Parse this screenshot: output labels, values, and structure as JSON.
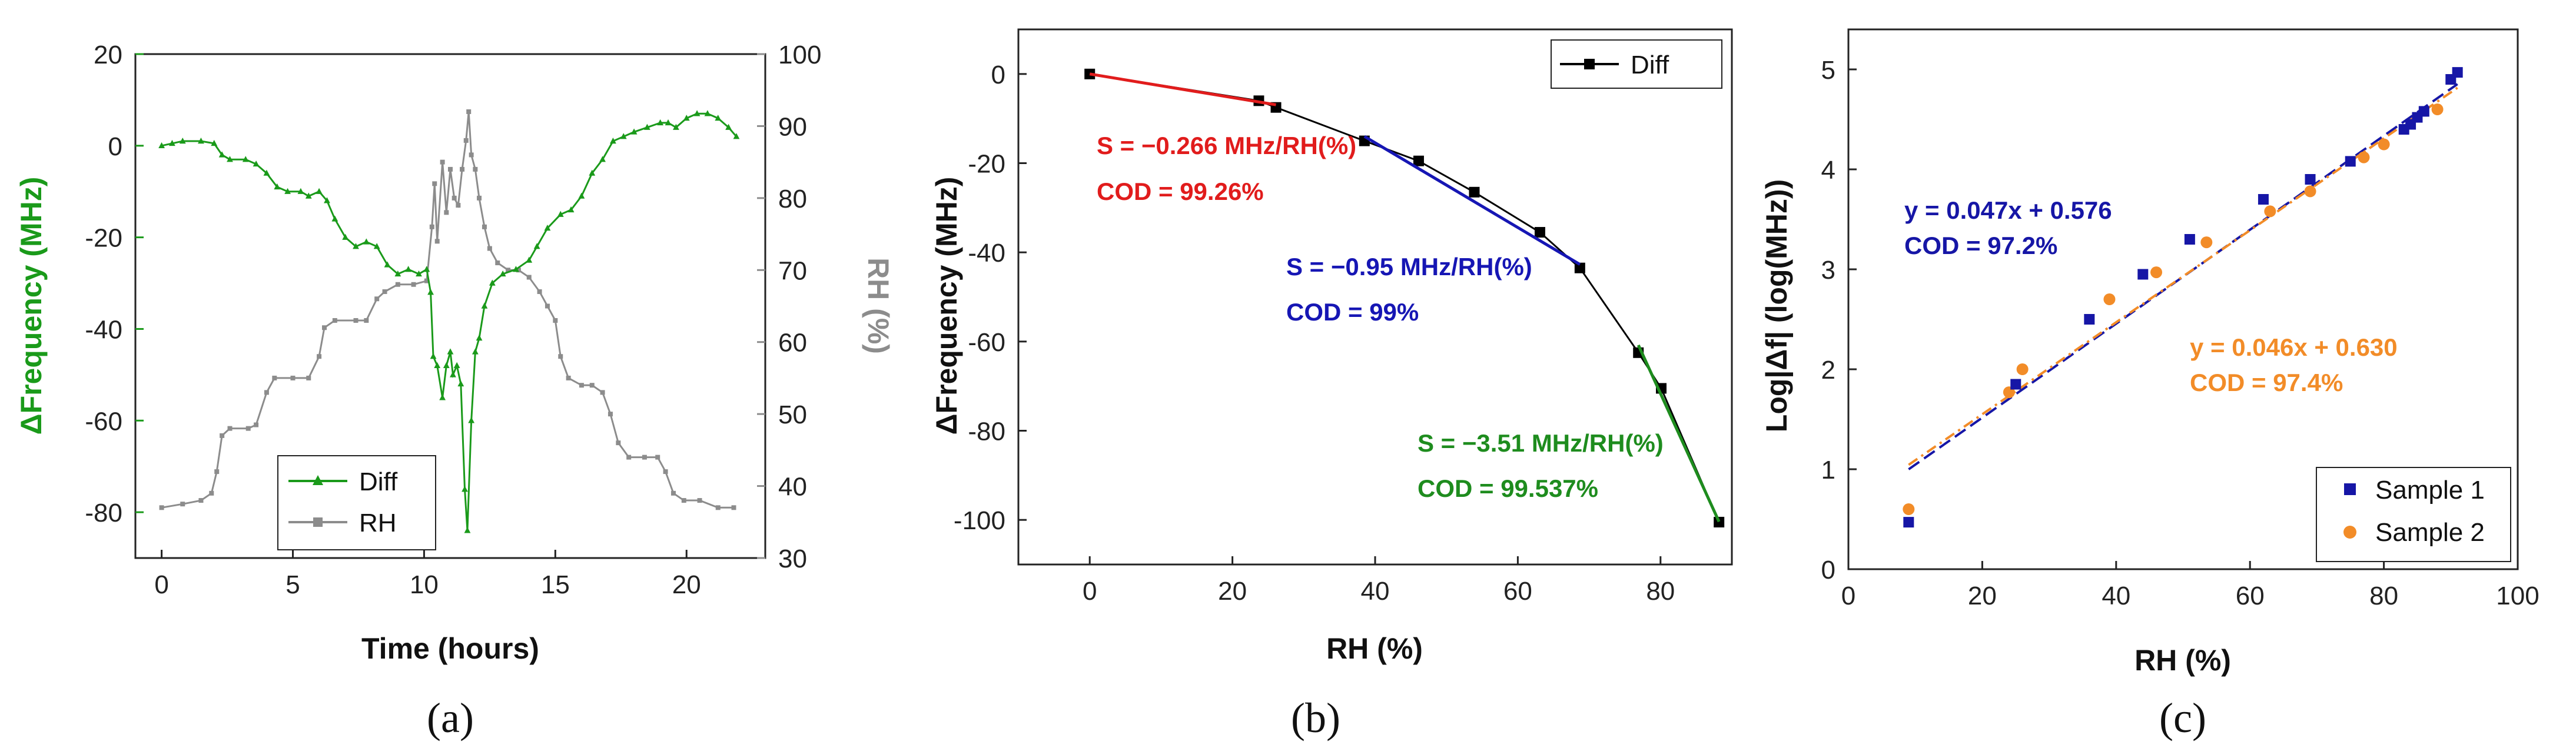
{
  "chart_data": [
    {
      "panel_label": "(a)",
      "type": "line",
      "xlabel": "Time (hours)",
      "ylabel": "ΔFrequency (MHz)",
      "y2label": "RH (%)",
      "xlim": [
        -1,
        23
      ],
      "ylim": [
        -90,
        20
      ],
      "y2lim": [
        30,
        100
      ],
      "xticks": [
        "0",
        "5",
        "10",
        "15",
        "20"
      ],
      "yticks": [
        "20",
        "0",
        "-20",
        "-40",
        "-60",
        "-80"
      ],
      "y2ticks": [
        "100",
        "90",
        "80",
        "70",
        "60",
        "50",
        "40",
        "30"
      ],
      "colors": {
        "diff": "#1a9a1a",
        "rh": "#8c8c8c",
        "left_axis": "#1a9a1a",
        "right_axis": "#8c8c8c"
      },
      "legend": {
        "position": "bottom-left",
        "entries": [
          "Diff",
          "RH"
        ]
      },
      "series": [
        {
          "name": "Diff",
          "axis": "left",
          "marker": "triangle",
          "points": [
            [
              0,
              0
            ],
            [
              0.4,
              0.5
            ],
            [
              0.8,
              1
            ],
            [
              1.5,
              1
            ],
            [
              2,
              0.5
            ],
            [
              2.3,
              -2
            ],
            [
              2.6,
              -3
            ],
            [
              3.2,
              -3
            ],
            [
              3.6,
              -4
            ],
            [
              4,
              -6
            ],
            [
              4.4,
              -9
            ],
            [
              4.8,
              -10
            ],
            [
              5.3,
              -10
            ],
            [
              5.6,
              -11
            ],
            [
              6,
              -10
            ],
            [
              6.3,
              -12
            ],
            [
              6.6,
              -16
            ],
            [
              7,
              -20
            ],
            [
              7.4,
              -22
            ],
            [
              7.8,
              -21
            ],
            [
              8.2,
              -22
            ],
            [
              8.6,
              -26
            ],
            [
              9,
              -28
            ],
            [
              9.4,
              -27
            ],
            [
              9.8,
              -28
            ],
            [
              10.1,
              -27
            ],
            [
              10.25,
              -32
            ],
            [
              10.35,
              -46
            ],
            [
              10.5,
              -48
            ],
            [
              10.7,
              -55
            ],
            [
              10.85,
              -48
            ],
            [
              11.0,
              -45
            ],
            [
              11.1,
              -50
            ],
            [
              11.25,
              -48
            ],
            [
              11.4,
              -52
            ],
            [
              11.55,
              -75
            ],
            [
              11.65,
              -84
            ],
            [
              11.8,
              -60
            ],
            [
              11.95,
              -45
            ],
            [
              12.1,
              -42
            ],
            [
              12.3,
              -35
            ],
            [
              12.6,
              -30
            ],
            [
              13,
              -28
            ],
            [
              13.5,
              -27
            ],
            [
              14,
              -25
            ],
            [
              14.3,
              -22
            ],
            [
              14.7,
              -18
            ],
            [
              15.2,
              -15
            ],
            [
              15.6,
              -14
            ],
            [
              16,
              -11
            ],
            [
              16.4,
              -6
            ],
            [
              16.8,
              -3
            ],
            [
              17.2,
              1
            ],
            [
              17.6,
              2
            ],
            [
              18,
              3
            ],
            [
              18.5,
              4
            ],
            [
              19,
              5
            ],
            [
              19.3,
              5
            ],
            [
              19.6,
              4
            ],
            [
              20,
              6
            ],
            [
              20.4,
              7
            ],
            [
              20.8,
              7
            ],
            [
              21.2,
              6
            ],
            [
              21.6,
              4
            ],
            [
              21.9,
              2
            ]
          ]
        },
        {
          "name": "RH",
          "axis": "right",
          "marker": "square",
          "points": [
            [
              0,
              37
            ],
            [
              0.8,
              37.5
            ],
            [
              1.5,
              38
            ],
            [
              1.9,
              39
            ],
            [
              2.1,
              42
            ],
            [
              2.3,
              47
            ],
            [
              2.6,
              48
            ],
            [
              3.3,
              48
            ],
            [
              3.6,
              48.5
            ],
            [
              4,
              53
            ],
            [
              4.3,
              55
            ],
            [
              5,
              55
            ],
            [
              5.6,
              55
            ],
            [
              6,
              58
            ],
            [
              6.2,
              62
            ],
            [
              6.6,
              63
            ],
            [
              7.4,
              63
            ],
            [
              7.8,
              63
            ],
            [
              8.2,
              66
            ],
            [
              8.5,
              67
            ],
            [
              9,
              68
            ],
            [
              9.6,
              68
            ],
            [
              10.1,
              68.5
            ],
            [
              10.3,
              76
            ],
            [
              10.4,
              82
            ],
            [
              10.5,
              74
            ],
            [
              10.7,
              85
            ],
            [
              10.85,
              78
            ],
            [
              11.0,
              84
            ],
            [
              11.15,
              80
            ],
            [
              11.3,
              79
            ],
            [
              11.45,
              84
            ],
            [
              11.6,
              88
            ],
            [
              11.7,
              92
            ],
            [
              11.8,
              86
            ],
            [
              11.95,
              84
            ],
            [
              12.1,
              80
            ],
            [
              12.3,
              76
            ],
            [
              12.5,
              73
            ],
            [
              12.8,
              71
            ],
            [
              13.2,
              70
            ],
            [
              13.6,
              70
            ],
            [
              14,
              69
            ],
            [
              14.4,
              67
            ],
            [
              14.7,
              65
            ],
            [
              15,
              63
            ],
            [
              15.2,
              58
            ],
            [
              15.5,
              55
            ],
            [
              16,
              54
            ],
            [
              16.4,
              54
            ],
            [
              16.8,
              53
            ],
            [
              17.1,
              50
            ],
            [
              17.4,
              46
            ],
            [
              17.8,
              44
            ],
            [
              18.4,
              44
            ],
            [
              18.9,
              44
            ],
            [
              19.2,
              42
            ],
            [
              19.5,
              39
            ],
            [
              19.9,
              38
            ],
            [
              20.5,
              38
            ],
            [
              21.2,
              37
            ],
            [
              21.8,
              37
            ]
          ]
        }
      ]
    },
    {
      "panel_label": "(b)",
      "type": "line",
      "xlabel": "RH (%)",
      "ylabel": "ΔFrequency (MHz)",
      "xlim": [
        -10,
        90
      ],
      "ylim": [
        -110,
        10
      ],
      "xticks": [
        "0",
        "20",
        "40",
        "60",
        "80"
      ],
      "yticks": [
        "0",
        "-20",
        "-40",
        "-60",
        "-80",
        "-100"
      ],
      "legend": {
        "position": "top-right",
        "entries": [
          "Diff"
        ]
      },
      "series": [
        {
          "name": "Diff",
          "color": "#000000",
          "marker": "square",
          "x": [
            0,
            23.7,
            26.1,
            38.5,
            46.1,
            53.9,
            63.1,
            68.7,
            76.9,
            80.1,
            88.2
          ],
          "y": [
            0,
            -6,
            -7.5,
            -15,
            -19.5,
            -26.5,
            -35.5,
            -43.5,
            -62.5,
            -70.5,
            -100.5
          ]
        }
      ],
      "fits": [
        {
          "color": "#e11c1c",
          "x": [
            0,
            26.1
          ],
          "y": [
            0,
            -6.9
          ],
          "label": "S = −0.266 MHz/RH(%)",
          "cod": "COD = 99.26%"
        },
        {
          "color": "#1616b4",
          "x": [
            38.5,
            68.7
          ],
          "y": [
            -14,
            -42.7
          ],
          "label": "S = −0.95 MHz/RH(%)",
          "cod": "COD = 99%"
        },
        {
          "color": "#1e8c1e",
          "x": [
            76.9,
            88.2
          ],
          "y": [
            -60.8,
            -100.4
          ],
          "label": "S = −3.51 MHz/RH(%)",
          "cod": "COD = 99.537%"
        }
      ]
    },
    {
      "panel_label": "(c)",
      "type": "scatter",
      "xlabel": "RH (%)",
      "ylabel": "Log|Δf| (log(MHz))",
      "xlim": [
        0,
        100
      ],
      "ylim": [
        0,
        5.4
      ],
      "xticks": [
        "0",
        "20",
        "40",
        "60",
        "80",
        "100"
      ],
      "yticks": [
        "0",
        "1",
        "2",
        "3",
        "4",
        "5"
      ],
      "legend": {
        "position": "bottom-right",
        "entries": [
          "Sample 1",
          "Sample 2"
        ]
      },
      "series": [
        {
          "name": "Sample 1",
          "color": "#1616a6",
          "marker": "square",
          "x": [
            9,
            25,
            36,
            44,
            51,
            62,
            69,
            75,
            83,
            84,
            85,
            86,
            90,
            91
          ],
          "y": [
            0.47,
            1.85,
            2.5,
            2.95,
            3.3,
            3.7,
            3.9,
            4.08,
            4.4,
            4.45,
            4.52,
            4.58,
            4.9,
            4.97
          ]
        },
        {
          "name": "Sample 2",
          "color": "#f28c28",
          "marker": "circle",
          "x": [
            9,
            24,
            26,
            39,
            46,
            53.5,
            63,
            69,
            77,
            80,
            88
          ],
          "y": [
            0.6,
            1.77,
            2.0,
            2.7,
            2.97,
            3.27,
            3.58,
            3.78,
            4.12,
            4.25,
            4.6
          ]
        }
      ],
      "fits": [
        {
          "name": "Sample 1 fit",
          "color": "#1616a6",
          "slope": 0.047,
          "intercept": 0.576,
          "x_range": [
            9,
            91
          ],
          "equation": "y = 0.047x + 0.576",
          "cod": "COD = 97.2%"
        },
        {
          "name": "Sample 2 fit",
          "color": "#f28c28",
          "slope": 0.046,
          "intercept": 0.63,
          "x_range": [
            9,
            91
          ],
          "equation": "y = 0.046x + 0.630",
          "cod": "COD = 97.4%"
        }
      ]
    }
  ]
}
